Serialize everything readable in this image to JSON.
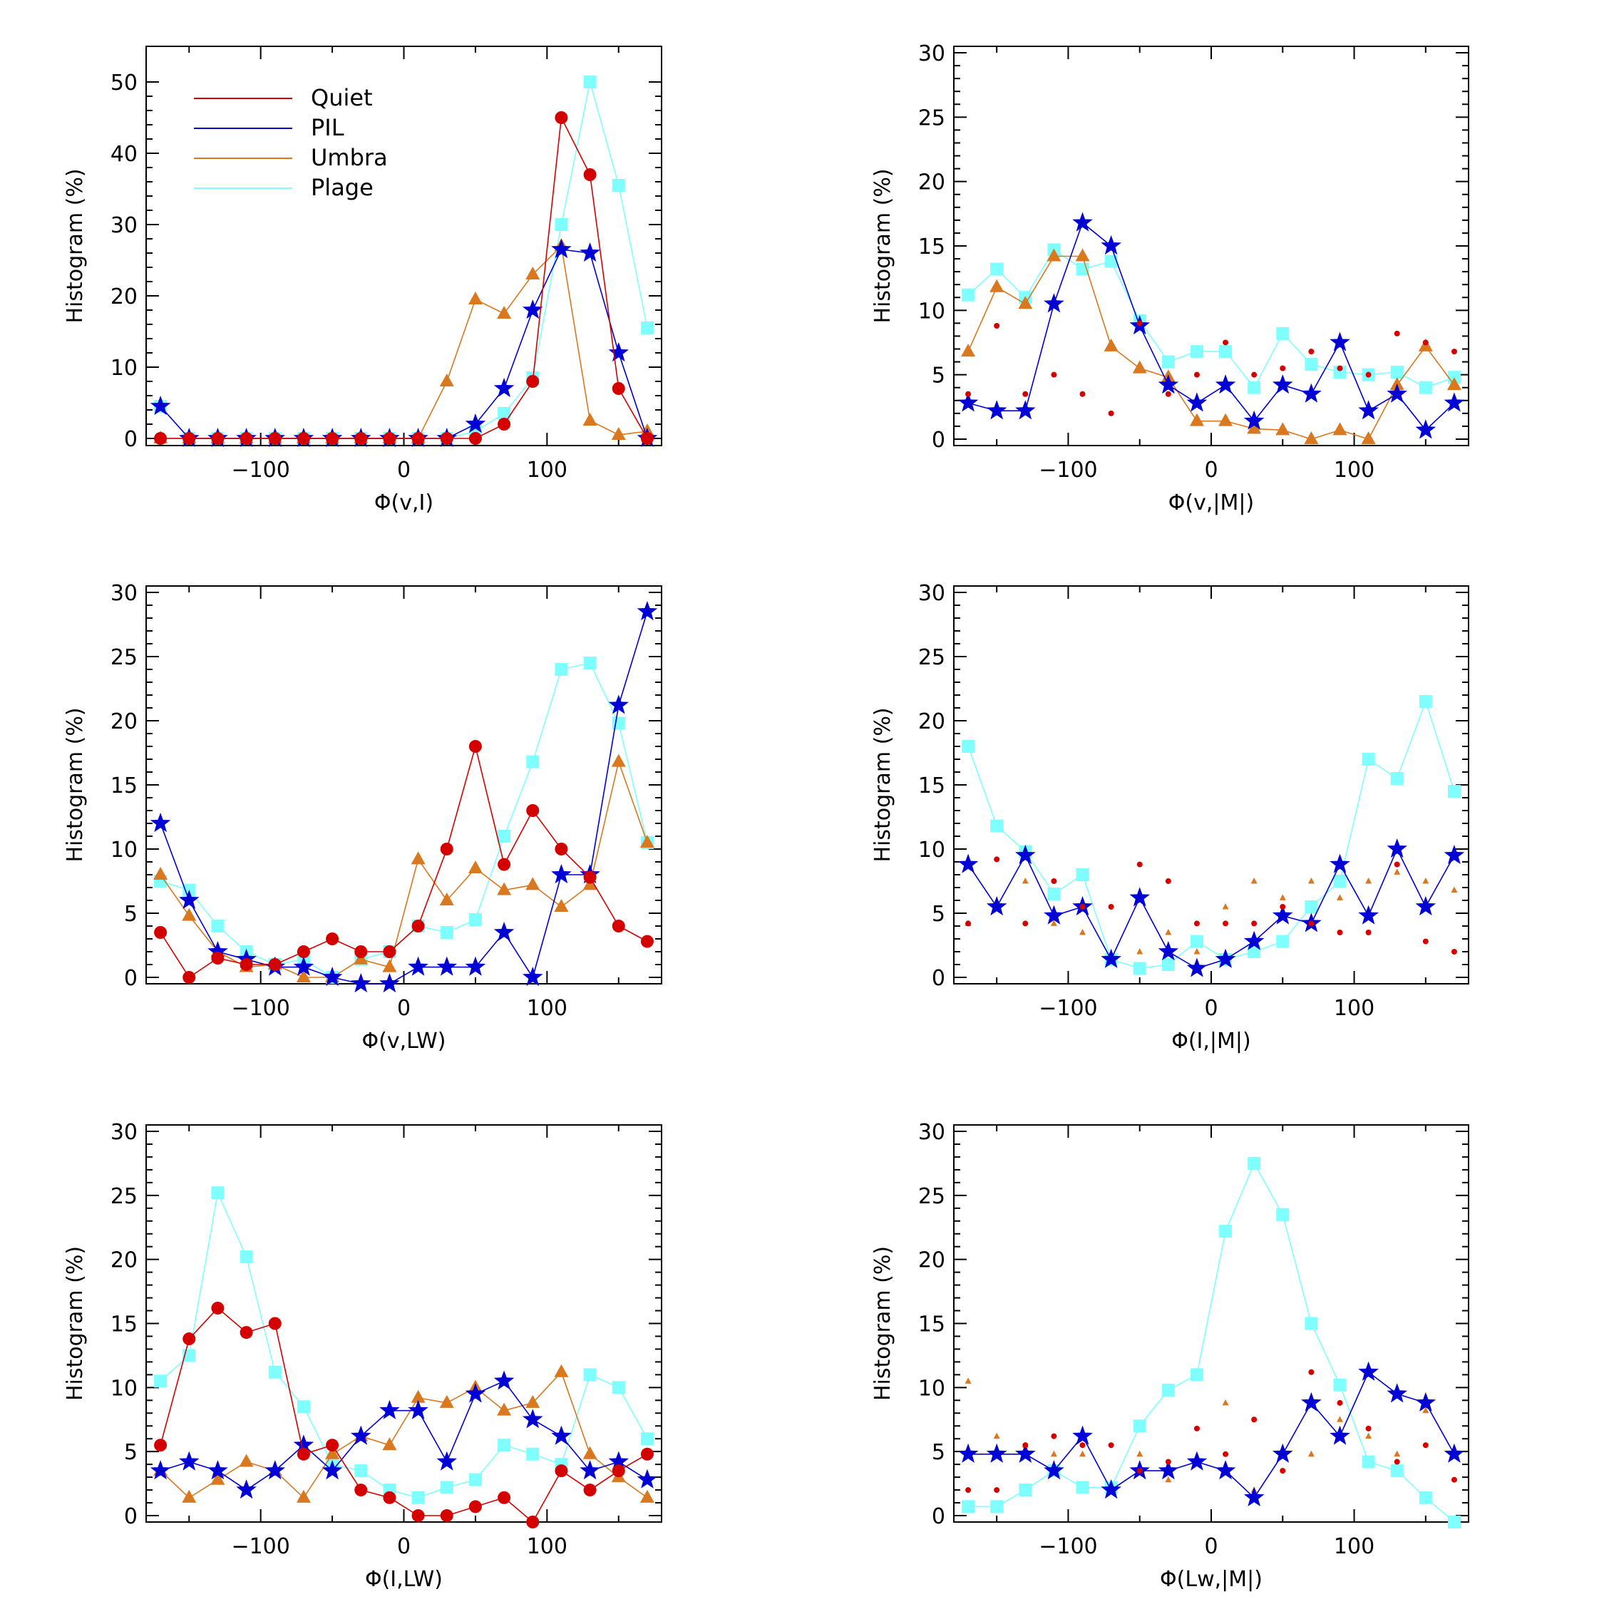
{
  "figure": {
    "legend": [
      {
        "label": "Quiet",
        "color": "#d40000"
      },
      {
        "label": "PIL",
        "color": "#0000d4"
      },
      {
        "label": "Umbra",
        "color": "#d9781e"
      },
      {
        "label": "Plage",
        "color": "#7fffff"
      }
    ]
  },
  "chart_data": [
    {
      "type": "line",
      "xlabel": "Φ(v,I)",
      "ylabel": "Histogram (%)",
      "xlim": [
        -180,
        180
      ],
      "ylim": [
        -1,
        55
      ],
      "xticks": [
        -100,
        0,
        100
      ],
      "yticks": [
        0,
        10,
        20,
        30,
        40,
        50
      ],
      "x": [
        -170,
        -150,
        -130,
        -110,
        -90,
        -70,
        -50,
        -30,
        -10,
        10,
        30,
        50,
        70,
        90,
        110,
        130,
        150,
        170
      ],
      "legend_location": "top-left",
      "series": [
        {
          "name": "Quiet",
          "style": "solid",
          "values": [
            0,
            0,
            0,
            0,
            0,
            0,
            0,
            0,
            0,
            0,
            0,
            0,
            2,
            8,
            45,
            37,
            7,
            0
          ]
        },
        {
          "name": "PIL",
          "style": "solid",
          "values": [
            4.5,
            0,
            0,
            0,
            0,
            0,
            0,
            0,
            0,
            0,
            0,
            2,
            7,
            18,
            26.5,
            26,
            12,
            0
          ]
        },
        {
          "name": "Umbra",
          "style": "solid",
          "values": [
            0,
            0,
            0,
            0,
            0,
            0,
            0,
            0,
            0,
            0,
            8,
            19.5,
            17.5,
            23,
            27,
            2.5,
            0.5,
            1
          ]
        },
        {
          "name": "Plage",
          "style": "solid",
          "values": [
            4.5,
            0,
            0,
            0,
            0,
            0,
            0,
            0,
            0,
            0,
            0,
            1,
            3.5,
            8.5,
            30,
            50,
            35.5,
            15.5
          ]
        }
      ]
    },
    {
      "type": "line",
      "xlabel": "Φ(v,|M|)",
      "ylabel": "Histogram (%)",
      "xlim": [
        -180,
        180
      ],
      "ylim": [
        -0.5,
        30.5
      ],
      "xticks": [
        -100,
        0,
        100
      ],
      "yticks": [
        0,
        5,
        10,
        15,
        20,
        25,
        30
      ],
      "x": [
        -170,
        -150,
        -130,
        -110,
        -90,
        -70,
        -50,
        -30,
        -10,
        10,
        30,
        50,
        70,
        90,
        110,
        130,
        150,
        170
      ],
      "series": [
        {
          "name": "Quiet",
          "style": "dots",
          "values": [
            3.5,
            8.8,
            3.5,
            5,
            3.5,
            2,
            9,
            3.5,
            5,
            7.5,
            5,
            5.5,
            6.8,
            5.5,
            5,
            8.2,
            7.5,
            6.8
          ]
        },
        {
          "name": "PIL",
          "style": "solid",
          "values": [
            2.8,
            2.2,
            2.2,
            10.5,
            16.8,
            15,
            8.8,
            4.2,
            2.8,
            4.2,
            1.4,
            4.2,
            3.5,
            7.5,
            2.2,
            3.5,
            0.7,
            2.8
          ]
        },
        {
          "name": "Umbra",
          "style": "solid",
          "values": [
            6.8,
            11.8,
            10.5,
            14.2,
            14.2,
            7.2,
            5.5,
            4.8,
            1.4,
            1.4,
            0.8,
            0.7,
            0,
            0.7,
            0,
            4.2,
            7.2,
            4.2
          ]
        },
        {
          "name": "Plage",
          "style": "solid",
          "values": [
            11.2,
            13.2,
            11,
            14.7,
            13.2,
            13.8,
            9.2,
            6,
            6.8,
            6.8,
            4,
            8.2,
            5.8,
            5.2,
            5,
            5.2,
            4,
            4.8
          ]
        }
      ]
    },
    {
      "type": "line",
      "xlabel": "Φ(v,LW)",
      "ylabel": "Histogram (%)",
      "xlim": [
        -180,
        180
      ],
      "ylim": [
        -0.5,
        30.5
      ],
      "xticks": [
        -100,
        0,
        100
      ],
      "yticks": [
        0,
        5,
        10,
        15,
        20,
        25,
        30
      ],
      "x": [
        -170,
        -150,
        -130,
        -110,
        -90,
        -70,
        -50,
        -30,
        -10,
        10,
        30,
        50,
        70,
        90,
        110,
        130,
        150,
        170
      ],
      "series": [
        {
          "name": "Quiet",
          "style": "solid",
          "values": [
            3.5,
            0,
            1.5,
            1,
            1,
            2,
            3,
            2,
            2,
            4,
            10,
            18,
            8.8,
            13,
            10,
            7.8,
            4,
            2.8
          ]
        },
        {
          "name": "PIL",
          "style": "solid",
          "values": [
            12,
            6,
            2,
            1.4,
            0.8,
            0.8,
            0,
            -0.5,
            -0.5,
            0.8,
            0.8,
            0.8,
            3.5,
            0,
            8,
            8,
            21.2,
            28.5
          ]
        },
        {
          "name": "Umbra",
          "style": "solid",
          "values": [
            8,
            4.8,
            2,
            0.8,
            1,
            0,
            0,
            1.4,
            0.8,
            9.2,
            6,
            8.5,
            6.8,
            7.2,
            5.5,
            7.2,
            16.8,
            10.5
          ]
        },
        {
          "name": "Plage",
          "style": "solid",
          "values": [
            7.5,
            6.8,
            4,
            2,
            1,
            1.4,
            0,
            1.4,
            2,
            4,
            3.5,
            4.5,
            11,
            16.8,
            24,
            24.5,
            19.8,
            10.5
          ]
        }
      ]
    },
    {
      "type": "line",
      "xlabel": "Φ(I,|M|)",
      "ylabel": "Histogram (%)",
      "xlim": [
        -180,
        180
      ],
      "ylim": [
        -0.5,
        30.5
      ],
      "xticks": [
        -100,
        0,
        100
      ],
      "yticks": [
        0,
        5,
        10,
        15,
        20,
        25,
        30
      ],
      "x": [
        -170,
        -150,
        -130,
        -110,
        -90,
        -70,
        -50,
        -30,
        -10,
        10,
        30,
        50,
        70,
        90,
        110,
        130,
        150,
        170
      ],
      "series": [
        {
          "name": "Quiet",
          "style": "dots",
          "values": [
            4.2,
            9.2,
            4.2,
            7.5,
            5.5,
            5.5,
            8.8,
            7.5,
            4.2,
            4.2,
            4.2,
            5.5,
            4.2,
            3.5,
            3.5,
            8.8,
            2.8,
            2
          ]
        },
        {
          "name": "PIL",
          "style": "solid",
          "values": [
            8.8,
            5.5,
            9.5,
            4.8,
            5.5,
            1.4,
            6.2,
            2,
            0.7,
            1.4,
            2.8,
            4.8,
            4.2,
            8.8,
            4.8,
            10,
            5.5,
            9.5
          ]
        },
        {
          "name": "Umbra",
          "style": "dots",
          "values": [
            4.2,
            5.5,
            7.5,
            4.2,
            3.5,
            1.4,
            2,
            3.5,
            2,
            5.5,
            7.5,
            6.2,
            7.5,
            6.2,
            7.5,
            8.2,
            7.5,
            6.8
          ]
        },
        {
          "name": "Plage",
          "style": "solid",
          "values": [
            18,
            11.8,
            9.8,
            6.5,
            8,
            1.4,
            0.7,
            1,
            2.8,
            1.4,
            2,
            2.8,
            5.5,
            7.5,
            17,
            15.5,
            21.5,
            14.5
          ]
        }
      ]
    },
    {
      "type": "line",
      "xlabel": "Φ(I,LW)",
      "ylabel": "Histogram (%)",
      "xlim": [
        -180,
        180
      ],
      "ylim": [
        -0.5,
        30.5
      ],
      "xticks": [
        -100,
        0,
        100
      ],
      "yticks": [
        0,
        5,
        10,
        15,
        20,
        25,
        30
      ],
      "x": [
        -170,
        -150,
        -130,
        -110,
        -90,
        -70,
        -50,
        -30,
        -10,
        10,
        30,
        50,
        70,
        90,
        110,
        130,
        150,
        170
      ],
      "series": [
        {
          "name": "Quiet",
          "style": "solid",
          "values": [
            5.5,
            13.8,
            16.2,
            14.3,
            15,
            4.8,
            5.5,
            2,
            1.4,
            0,
            0,
            0.7,
            1.4,
            -0.5,
            3.5,
            2,
            3.5,
            4.8
          ]
        },
        {
          "name": "PIL",
          "style": "solid",
          "values": [
            3.5,
            4.2,
            3.5,
            2,
            3.5,
            5.5,
            3.5,
            6.2,
            8.2,
            8.2,
            4.2,
            9.5,
            10.5,
            7.5,
            6.2,
            3.5,
            4.2,
            2.8
          ]
        },
        {
          "name": "Umbra",
          "style": "solid",
          "values": [
            3.5,
            1.4,
            2.8,
            4.2,
            3.5,
            1.4,
            4.8,
            6.2,
            5.5,
            9.2,
            8.8,
            10,
            8.2,
            8.8,
            11.2,
            4.8,
            3,
            1.4
          ]
        },
        {
          "name": "Plage",
          "style": "solid",
          "values": [
            10.5,
            12.5,
            25.2,
            20.2,
            11.2,
            8.5,
            4,
            3.5,
            2,
            1.4,
            2.2,
            2.8,
            5.5,
            4.8,
            4,
            11,
            10,
            6
          ]
        }
      ]
    },
    {
      "type": "line",
      "xlabel": "Φ(Lw,|M|)",
      "ylabel": "Histogram (%)",
      "xlim": [
        -180,
        180
      ],
      "ylim": [
        -0.5,
        30.5
      ],
      "xticks": [
        -100,
        0,
        100
      ],
      "yticks": [
        0,
        5,
        10,
        15,
        20,
        25,
        30
      ],
      "x": [
        -170,
        -150,
        -130,
        -110,
        -90,
        -70,
        -50,
        -30,
        -10,
        10,
        30,
        50,
        70,
        90,
        110,
        130,
        150,
        170
      ],
      "series": [
        {
          "name": "Quiet",
          "style": "dots",
          "values": [
            2,
            2,
            5.5,
            6.2,
            5.5,
            5.5,
            3.5,
            4.2,
            6.8,
            4.8,
            7.5,
            3.5,
            11.2,
            8.8,
            6.8,
            4.2,
            5.5,
            2.8
          ]
        },
        {
          "name": "PIL",
          "style": "solid",
          "values": [
            4.8,
            4.8,
            4.8,
            3.5,
            6.2,
            2,
            3.5,
            3.5,
            4.2,
            3.5,
            1.4,
            4.8,
            8.8,
            6.2,
            11.2,
            9.5,
            8.8,
            4.8
          ]
        },
        {
          "name": "Umbra",
          "style": "dots",
          "values": [
            10.5,
            6.2,
            5.5,
            4.8,
            4.8,
            2,
            4.8,
            2.8,
            4.2,
            8.8,
            2,
            4.8,
            4.8,
            7.5,
            6.2,
            4.8,
            8.2,
            4.8
          ]
        },
        {
          "name": "Plage",
          "style": "solid",
          "values": [
            0.7,
            0.7,
            2,
            3.5,
            2.2,
            2.2,
            7,
            9.8,
            11,
            22.2,
            27.5,
            23.5,
            15,
            10.2,
            4.2,
            3.5,
            1.4,
            -0.5
          ]
        }
      ]
    }
  ]
}
